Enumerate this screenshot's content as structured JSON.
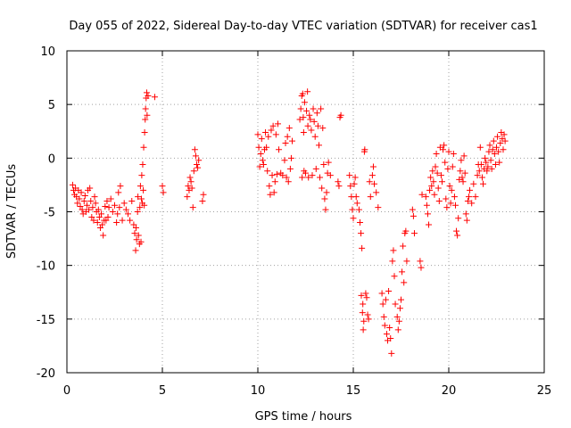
{
  "chart_data": {
    "type": "scatter",
    "title": "Day 055 of 2022, Sidereal Day-to-day VTEC variation (SDTVAR) for receiver cas1",
    "xlabel": "GPS time / hours",
    "ylabel": "SDTVAR / TECUs",
    "xlim": [
      0,
      25
    ],
    "ylim": [
      -20,
      10
    ],
    "x_ticks": [
      0,
      5,
      10,
      15,
      20,
      25
    ],
    "y_ticks": [
      -20,
      -15,
      -10,
      -5,
      0,
      5,
      10
    ],
    "x_tick_labels": [
      "0",
      "5",
      "10",
      "15",
      "20",
      "25"
    ],
    "y_tick_labels": [
      "-20",
      "-15",
      "-10",
      "-5",
      "0",
      "5",
      "10"
    ],
    "grid": true,
    "marker": "+",
    "color": "#ff0000",
    "series": [
      {
        "name": "SDTVAR",
        "points": [
          [
            0.3,
            -2.5
          ],
          [
            0.35,
            -3.0
          ],
          [
            0.4,
            -3.4
          ],
          [
            0.45,
            -2.8
          ],
          [
            0.5,
            -3.6
          ],
          [
            0.55,
            -4.2
          ],
          [
            0.6,
            -3.0
          ],
          [
            0.65,
            -3.8
          ],
          [
            0.7,
            -4.5
          ],
          [
            0.75,
            -3.2
          ],
          [
            0.8,
            -4.8
          ],
          [
            0.85,
            -5.2
          ],
          [
            0.9,
            -4.0
          ],
          [
            0.95,
            -3.5
          ],
          [
            1.0,
            -5.0
          ],
          [
            1.05,
            -4.4
          ],
          [
            1.1,
            -3.0
          ],
          [
            1.15,
            -4.8
          ],
          [
            1.2,
            -2.8
          ],
          [
            1.25,
            -4.0
          ],
          [
            1.3,
            -5.5
          ],
          [
            1.35,
            -4.6
          ],
          [
            1.4,
            -5.8
          ],
          [
            1.45,
            -3.6
          ],
          [
            1.5,
            -4.2
          ],
          [
            1.55,
            -5.0
          ],
          [
            1.6,
            -6.0
          ],
          [
            1.65,
            -4.8
          ],
          [
            1.7,
            -5.5
          ],
          [
            1.75,
            -6.5
          ],
          [
            1.8,
            -5.2
          ],
          [
            1.85,
            -6.2
          ],
          [
            1.9,
            -7.2
          ],
          [
            1.95,
            -5.8
          ],
          [
            2.0,
            -4.5
          ],
          [
            2.05,
            -5.8
          ],
          [
            2.1,
            -4.0
          ],
          [
            2.15,
            -5.5
          ],
          [
            2.2,
            -4.6
          ],
          [
            2.3,
            -3.8
          ],
          [
            2.4,
            -5.0
          ],
          [
            2.5,
            -4.4
          ],
          [
            2.6,
            -6.0
          ],
          [
            2.65,
            -5.2
          ],
          [
            2.7,
            -3.2
          ],
          [
            2.75,
            -4.6
          ],
          [
            2.8,
            -2.6
          ],
          [
            2.9,
            -5.8
          ],
          [
            3.0,
            -4.2
          ],
          [
            3.1,
            -4.8
          ],
          [
            3.2,
            -5.2
          ],
          [
            3.3,
            -5.8
          ],
          [
            3.4,
            -4.0
          ],
          [
            3.5,
            -6.2
          ],
          [
            3.55,
            -7.0
          ],
          [
            3.6,
            -8.6
          ],
          [
            3.62,
            -6.5
          ],
          [
            3.65,
            -7.6
          ],
          [
            3.7,
            -5.0
          ],
          [
            3.72,
            -3.6
          ],
          [
            3.75,
            -7.2
          ],
          [
            3.8,
            -8.0
          ],
          [
            3.82,
            -4.6
          ],
          [
            3.85,
            -2.6
          ],
          [
            3.88,
            -7.8
          ],
          [
            3.9,
            -3.8
          ],
          [
            3.92,
            -1.6
          ],
          [
            3.95,
            -4.2
          ],
          [
            3.97,
            -0.6
          ],
          [
            4.0,
            -3.0
          ],
          [
            4.02,
            1.0
          ],
          [
            4.05,
            -4.4
          ],
          [
            4.07,
            2.4
          ],
          [
            4.1,
            3.6
          ],
          [
            4.12,
            4.6
          ],
          [
            4.15,
            5.6
          ],
          [
            4.18,
            6.1
          ],
          [
            4.2,
            4.0
          ],
          [
            4.25,
            5.8
          ],
          [
            4.6,
            5.7
          ],
          [
            5.0,
            -2.6
          ],
          [
            5.05,
            -3.2
          ],
          [
            6.3,
            -3.6
          ],
          [
            6.35,
            -2.6
          ],
          [
            6.4,
            -3.0
          ],
          [
            6.45,
            -1.8
          ],
          [
            6.5,
            -2.2
          ],
          [
            6.55,
            -2.8
          ],
          [
            6.6,
            -4.6
          ],
          [
            6.65,
            -1.2
          ],
          [
            6.7,
            0.8
          ],
          [
            6.75,
            0.2
          ],
          [
            6.8,
            -0.6
          ],
          [
            6.85,
            -0.9
          ],
          [
            6.9,
            -0.2
          ],
          [
            7.1,
            -4.0
          ],
          [
            7.15,
            -3.4
          ],
          [
            10.0,
            2.2
          ],
          [
            10.05,
            1.0
          ],
          [
            10.1,
            -0.8
          ],
          [
            10.15,
            0.4
          ],
          [
            10.2,
            1.8
          ],
          [
            10.25,
            -0.2
          ],
          [
            10.3,
            -0.6
          ],
          [
            10.35,
            0.8
          ],
          [
            10.4,
            2.4
          ],
          [
            10.45,
            1.0
          ],
          [
            10.5,
            -1.2
          ],
          [
            10.55,
            2.0
          ],
          [
            10.6,
            -2.6
          ],
          [
            10.65,
            -3.4
          ],
          [
            10.7,
            2.6
          ],
          [
            10.75,
            -1.6
          ],
          [
            10.8,
            3.0
          ],
          [
            10.85,
            -3.2
          ],
          [
            10.9,
            -2.2
          ],
          [
            10.95,
            2.2
          ],
          [
            11.0,
            -1.5
          ],
          [
            11.05,
            3.2
          ],
          [
            11.1,
            0.8
          ],
          [
            11.2,
            -1.4
          ],
          [
            11.3,
            -1.6
          ],
          [
            11.4,
            -0.2
          ],
          [
            11.45,
            1.4
          ],
          [
            11.5,
            -1.8
          ],
          [
            11.55,
            2.0
          ],
          [
            11.6,
            -2.2
          ],
          [
            11.65,
            2.8
          ],
          [
            11.7,
            -1.0
          ],
          [
            11.75,
            0.0
          ],
          [
            11.8,
            1.6
          ],
          [
            12.2,
            3.6
          ],
          [
            12.25,
            4.6
          ],
          [
            12.3,
            5.8
          ],
          [
            12.32,
            -1.8
          ],
          [
            12.35,
            6.0
          ],
          [
            12.38,
            3.8
          ],
          [
            12.4,
            2.4
          ],
          [
            12.42,
            -1.2
          ],
          [
            12.45,
            5.2
          ],
          [
            12.5,
            -1.4
          ],
          [
            12.55,
            4.4
          ],
          [
            12.6,
            6.2
          ],
          [
            12.62,
            3.0
          ],
          [
            12.65,
            -1.8
          ],
          [
            12.7,
            4.0
          ],
          [
            12.75,
            3.6
          ],
          [
            12.8,
            2.6
          ],
          [
            12.85,
            -1.6
          ],
          [
            12.9,
            4.6
          ],
          [
            12.95,
            3.4
          ],
          [
            13.0,
            2.0
          ],
          [
            13.05,
            -1.0
          ],
          [
            13.1,
            4.2
          ],
          [
            13.15,
            3.0
          ],
          [
            13.2,
            1.2
          ],
          [
            13.25,
            -1.8
          ],
          [
            13.3,
            4.6
          ],
          [
            13.35,
            -2.8
          ],
          [
            13.4,
            2.8
          ],
          [
            13.45,
            -0.6
          ],
          [
            13.5,
            -3.8
          ],
          [
            13.55,
            -4.8
          ],
          [
            13.6,
            -3.2
          ],
          [
            13.65,
            -1.4
          ],
          [
            13.7,
            -0.4
          ],
          [
            13.8,
            -1.6
          ],
          [
            14.2,
            -2.2
          ],
          [
            14.25,
            -2.6
          ],
          [
            14.3,
            3.8
          ],
          [
            14.35,
            4.0
          ],
          [
            14.8,
            -1.6
          ],
          [
            14.85,
            -2.6
          ],
          [
            14.9,
            -3.6
          ],
          [
            14.95,
            -4.8
          ],
          [
            15.0,
            -5.6
          ],
          [
            15.05,
            -2.4
          ],
          [
            15.1,
            -1.8
          ],
          [
            15.15,
            -3.6
          ],
          [
            15.2,
            -4.2
          ],
          [
            15.3,
            -4.8
          ],
          [
            15.35,
            -6.0
          ],
          [
            15.4,
            -7.0
          ],
          [
            15.42,
            -12.8
          ],
          [
            15.45,
            -8.4
          ],
          [
            15.48,
            -14.4
          ],
          [
            15.5,
            -13.6
          ],
          [
            15.52,
            -16.0
          ],
          [
            15.55,
            -15.2
          ],
          [
            15.58,
            0.6
          ],
          [
            15.6,
            0.8
          ],
          [
            15.65,
            -12.6
          ],
          [
            15.7,
            -13.0
          ],
          [
            15.75,
            -14.6
          ],
          [
            15.8,
            -15.0
          ],
          [
            15.85,
            -2.2
          ],
          [
            15.9,
            -3.6
          ],
          [
            16.0,
            -1.6
          ],
          [
            16.05,
            -0.8
          ],
          [
            16.1,
            -2.4
          ],
          [
            16.2,
            -3.2
          ],
          [
            16.3,
            -4.6
          ],
          [
            16.5,
            -12.6
          ],
          [
            16.55,
            -13.6
          ],
          [
            16.6,
            -14.8
          ],
          [
            16.65,
            -15.6
          ],
          [
            16.7,
            -13.2
          ],
          [
            16.75,
            -16.4
          ],
          [
            16.8,
            -17.0
          ],
          [
            16.85,
            -12.4
          ],
          [
            16.9,
            -15.8
          ],
          [
            16.95,
            -16.8
          ],
          [
            17.0,
            -18.2
          ],
          [
            17.05,
            -9.6
          ],
          [
            17.1,
            -8.6
          ],
          [
            17.15,
            -11.0
          ],
          [
            17.2,
            -13.6
          ],
          [
            17.3,
            -14.8
          ],
          [
            17.35,
            -16.0
          ],
          [
            17.4,
            -15.2
          ],
          [
            17.45,
            -14.0
          ],
          [
            17.5,
            -13.2
          ],
          [
            17.55,
            -10.6
          ],
          [
            17.6,
            -8.2
          ],
          [
            17.65,
            -11.6
          ],
          [
            17.7,
            -7.0
          ],
          [
            17.75,
            -6.8
          ],
          [
            17.8,
            -9.6
          ],
          [
            18.1,
            -4.8
          ],
          [
            18.15,
            -5.4
          ],
          [
            18.2,
            -7.0
          ],
          [
            18.5,
            -9.6
          ],
          [
            18.55,
            -10.2
          ],
          [
            18.6,
            -3.4
          ],
          [
            18.8,
            -3.6
          ],
          [
            18.85,
            -4.4
          ],
          [
            18.9,
            -5.2
          ],
          [
            18.95,
            -6.2
          ],
          [
            19.0,
            -3.0
          ],
          [
            19.05,
            -1.8
          ],
          [
            19.1,
            -2.6
          ],
          [
            19.15,
            -1.2
          ],
          [
            19.2,
            -2.2
          ],
          [
            19.25,
            -3.4
          ],
          [
            19.3,
            -0.8
          ],
          [
            19.35,
            0.4
          ],
          [
            19.4,
            -1.4
          ],
          [
            19.45,
            -2.8
          ],
          [
            19.5,
            -4.0
          ],
          [
            19.55,
            1.0
          ],
          [
            19.6,
            -1.6
          ],
          [
            19.65,
            -2.2
          ],
          [
            19.7,
            0.8
          ],
          [
            19.75,
            1.2
          ],
          [
            19.8,
            -0.4
          ],
          [
            19.85,
            -3.8
          ],
          [
            19.9,
            -4.6
          ],
          [
            19.95,
            -1.0
          ],
          [
            20.0,
            0.6
          ],
          [
            20.05,
            -2.6
          ],
          [
            20.1,
            -4.2
          ],
          [
            20.15,
            -3.0
          ],
          [
            20.2,
            -0.8
          ],
          [
            20.25,
            0.4
          ],
          [
            20.3,
            -3.6
          ],
          [
            20.35,
            -4.4
          ],
          [
            20.4,
            -6.8
          ],
          [
            20.45,
            -7.2
          ],
          [
            20.5,
            -5.6
          ],
          [
            20.55,
            -2.0
          ],
          [
            20.6,
            -1.2
          ],
          [
            20.65,
            -0.2
          ],
          [
            20.7,
            -1.8
          ],
          [
            20.75,
            -2.2
          ],
          [
            20.8,
            0.2
          ],
          [
            20.85,
            -1.4
          ],
          [
            20.9,
            -5.2
          ],
          [
            20.95,
            -5.8
          ],
          [
            21.0,
            -4.0
          ],
          [
            21.05,
            -3.6
          ],
          [
            21.1,
            -3.0
          ],
          [
            21.2,
            -4.2
          ],
          [
            21.3,
            -2.4
          ],
          [
            21.4,
            -3.6
          ],
          [
            21.5,
            -1.6
          ],
          [
            21.55,
            -0.6
          ],
          [
            21.6,
            -1.2
          ],
          [
            21.65,
            1.0
          ],
          [
            21.7,
            -0.6
          ],
          [
            21.75,
            -1.8
          ],
          [
            21.8,
            -2.4
          ],
          [
            21.85,
            -1.0
          ],
          [
            21.9,
            0.0
          ],
          [
            21.95,
            -0.4
          ],
          [
            22.0,
            -1.2
          ],
          [
            22.05,
            -0.8
          ],
          [
            22.1,
            0.6
          ],
          [
            22.15,
            1.2
          ],
          [
            22.2,
            -0.2
          ],
          [
            22.25,
            -1.0
          ],
          [
            22.3,
            0.8
          ],
          [
            22.35,
            1.6
          ],
          [
            22.4,
            0.4
          ],
          [
            22.45,
            -0.6
          ],
          [
            22.5,
            1.0
          ],
          [
            22.55,
            2.0
          ],
          [
            22.6,
            0.6
          ],
          [
            22.65,
            -0.4
          ],
          [
            22.7,
            1.4
          ],
          [
            22.75,
            2.4
          ],
          [
            22.8,
            1.8
          ],
          [
            22.85,
            0.8
          ],
          [
            22.9,
            2.2
          ],
          [
            22.95,
            1.6
          ]
        ]
      }
    ]
  }
}
